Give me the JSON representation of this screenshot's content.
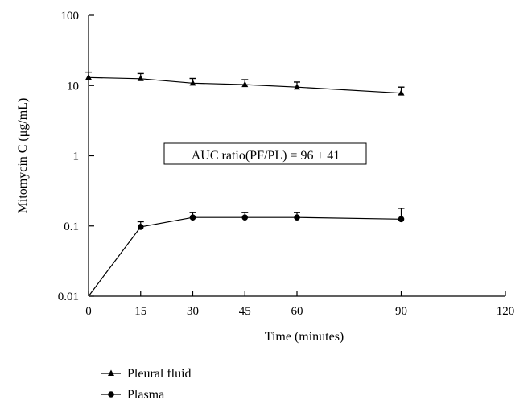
{
  "chart_data": {
    "type": "line",
    "xlabel": "Time (minutes)",
    "ylabel": "Mitomycin C (μg/mL)",
    "y_scale": "log",
    "xlim": [
      0,
      120
    ],
    "ylim": [
      0.01,
      100
    ],
    "x_ticks": [
      0,
      15,
      30,
      45,
      60,
      90,
      120
    ],
    "y_ticks": [
      {
        "value": 0.01,
        "label": "0.01"
      },
      {
        "value": 0.1,
        "label": "0.1"
      },
      {
        "value": 1,
        "label": "1"
      },
      {
        "value": 10,
        "label": "10"
      },
      {
        "value": 100,
        "label": "100"
      }
    ],
    "grid": false,
    "legend_position": "bottom-left",
    "annotation": "AUC ratio(PF/PL) = 96 ± 41",
    "series": [
      {
        "name": "Pleural fluid",
        "marker": "triangle",
        "x": [
          0,
          15,
          30,
          45,
          60,
          90
        ],
        "y": [
          13,
          12.5,
          10.8,
          10.3,
          9.5,
          7.8
        ],
        "error_upper": [
          15.5,
          14.8,
          12.6,
          12.1,
          11.2,
          9.5
        ]
      },
      {
        "name": "Plasma",
        "marker": "circle",
        "x": [
          0,
          15,
          30,
          45,
          60,
          90
        ],
        "y": [
          0.01,
          0.097,
          0.132,
          0.132,
          0.132,
          0.125
        ],
        "error_upper": [
          null,
          0.115,
          0.155,
          0.155,
          0.155,
          0.178
        ]
      }
    ]
  }
}
